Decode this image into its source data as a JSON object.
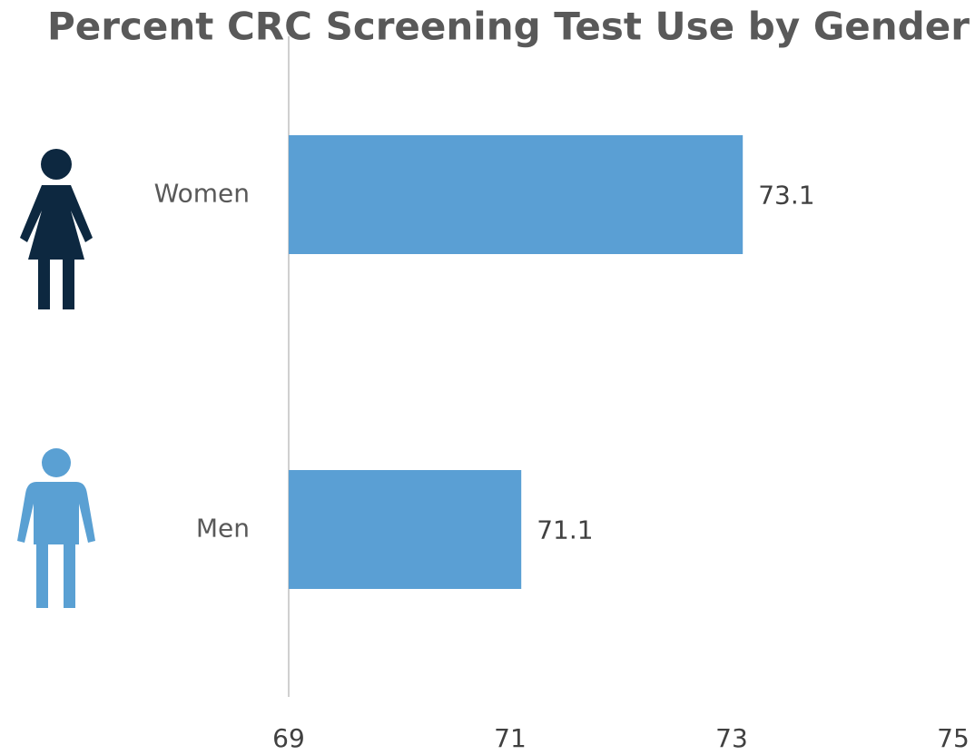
{
  "chart_data": {
    "type": "hbar",
    "title": "Percent CRC Screening Test Use by Gender",
    "categories": [
      "Women",
      "Men"
    ],
    "values": [
      73.1,
      71.1
    ],
    "color": "#5a9fd4",
    "xlim": [
      69,
      75
    ],
    "xticks": [
      69,
      71,
      73,
      75
    ],
    "grid": false
  }
}
